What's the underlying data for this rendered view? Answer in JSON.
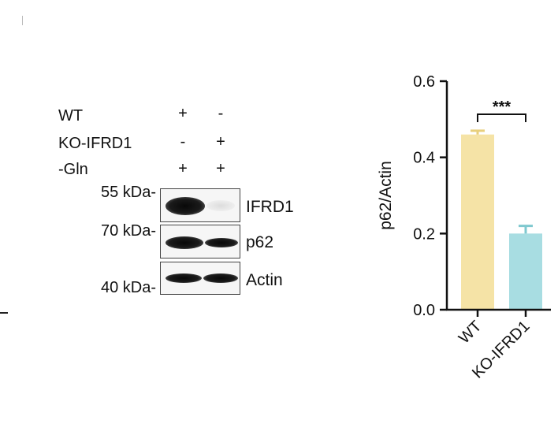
{
  "blot": {
    "conditions": [
      {
        "label": "WT",
        "lane1": "+",
        "lane2": "-"
      },
      {
        "label": "KO-IFRD1",
        "lane1": "-",
        "lane2": "+"
      },
      {
        "label": "-Gln",
        "lane1": "+",
        "lane2": "+"
      }
    ],
    "rows": [
      {
        "marker": "55 kDa-",
        "protein": "IFRD1"
      },
      {
        "marker": "70 kDa-",
        "protein": "p62"
      },
      {
        "marker": "40 kDa-",
        "protein": "Actin"
      }
    ]
  },
  "chart_data": {
    "type": "bar",
    "categories": [
      "WT",
      "KO-IFRD1"
    ],
    "values": [
      0.46,
      0.2
    ],
    "errors": [
      0.01,
      0.02
    ],
    "colors": [
      "#f5e3a6",
      "#a8dde2"
    ],
    "ylabel": "p62/Actin",
    "ylim": [
      0,
      0.6
    ],
    "yticks": [
      0.0,
      0.2,
      0.4,
      0.6
    ],
    "ytick_labels": [
      "0.0",
      "0.2",
      "0.4",
      "0.6"
    ],
    "significance": {
      "between": [
        0,
        1
      ],
      "label": "***"
    },
    "grid": false
  }
}
